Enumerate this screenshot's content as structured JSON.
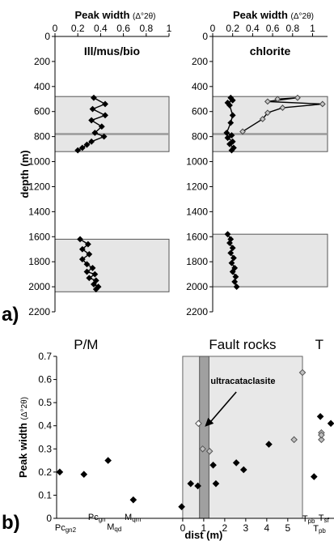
{
  "panel_labels": {
    "a": "a)",
    "b": "b)"
  },
  "chart_data": [
    {
      "type": "line",
      "panel": "a-left",
      "title": "Ill/mus/bio",
      "xlabel": "Peak width",
      "xlabel_unit": "(Δ°2θ)",
      "ylabel": "depth (m)",
      "xlim": [
        0,
        1
      ],
      "x_ticks": [
        "0",
        "0.2",
        "0.4",
        "0.6",
        "0.8",
        "1"
      ],
      "ylim": [
        0,
        2200
      ],
      "y_ticks": [
        "0",
        "200",
        "400",
        "600",
        "800",
        "1000",
        "1200",
        "1400",
        "1600",
        "1800",
        "2000",
        "2200"
      ],
      "y_inverted": true,
      "shaded_bands": [
        [
          480,
          920
        ],
        [
          1620,
          2040
        ]
      ],
      "gray_lines": [
        780
      ],
      "series": [
        {
          "x": [
            0.34,
            0.44,
            0.33,
            0.44,
            0.32,
            0.41,
            0.35,
            0.43,
            0.32,
            0.28,
            0.24,
            0.2
          ],
          "y": [
            490,
            540,
            580,
            630,
            670,
            720,
            770,
            800,
            840,
            865,
            890,
            910
          ]
        },
        {
          "x": [
            0.22,
            0.29,
            0.24,
            0.3,
            0.24,
            0.28,
            0.33,
            0.28,
            0.35,
            0.3,
            0.36,
            0.34,
            0.38,
            0.36
          ],
          "y": [
            1620,
            1660,
            1700,
            1740,
            1780,
            1820,
            1850,
            1880,
            1900,
            1930,
            1950,
            1980,
            2000,
            2020
          ]
        }
      ]
    },
    {
      "type": "line",
      "panel": "a-right",
      "title": "chlorite",
      "xlabel": "Peak width",
      "xlabel_unit": "(Δ°2θ)",
      "xlim": [
        0,
        1.15
      ],
      "x_ticks": [
        "0",
        "0.2",
        "0.4",
        "0.6",
        "0.8",
        "1"
      ],
      "ylim": [
        0,
        2200
      ],
      "y_ticks": [
        "0",
        "200",
        "400",
        "600",
        "800",
        "1000",
        "1200",
        "1400",
        "1600",
        "1800",
        "2000",
        "2200"
      ],
      "y_inverted": true,
      "shaded_bands": [
        [
          480,
          920
        ],
        [
          1580,
          2000
        ]
      ],
      "gray_lines": [
        780
      ],
      "series": [
        {
          "x": [
            0.18,
            0.2,
            0.15,
            0.17,
            0.2,
            0.18,
            0.14,
            0.19,
            0.15,
            0.2,
            0.17,
            0.21,
            0.19
          ],
          "y": [
            490,
            510,
            530,
            550,
            630,
            690,
            770,
            790,
            810,
            840,
            860,
            890,
            910
          ]
        },
        {
          "x": [
            0.65,
            0.85,
            0.55,
            1.1,
            0.7,
            0.55,
            0.5,
            0.3
          ],
          "y": [
            500,
            490,
            520,
            540,
            570,
            610,
            660,
            760
          ]
        },
        {
          "x": [
            0.15,
            0.18,
            0.17,
            0.2,
            0.18,
            0.21,
            0.19,
            0.22,
            0.2,
            0.23,
            0.22,
            0.24
          ],
          "y": [
            1580,
            1620,
            1650,
            1690,
            1730,
            1770,
            1810,
            1850,
            1880,
            1920,
            1960,
            2000
          ]
        }
      ]
    },
    {
      "type": "scatter",
      "panel": "b",
      "xlabel": "dist (m)",
      "ylabel": "Peak width",
      "ylabel_unit": "(Δ°2θ)",
      "ylim": [
        0,
        0.7
      ],
      "y_ticks": [
        "0",
        "0.1",
        "0.2",
        "0.3",
        "0.4",
        "0.5",
        "0.6",
        "0.7"
      ],
      "xlim": [
        -6,
        7.2
      ],
      "x_ticks": [
        "0",
        "1",
        "2",
        "3",
        "4",
        "5"
      ],
      "regions": [
        {
          "label": "P/M"
        },
        {
          "label": "Fault rocks",
          "x_range": [
            0,
            5.7
          ]
        },
        {
          "label": "T"
        }
      ],
      "shaded_zone": [
        0,
        5.7
      ],
      "dark_zone": [
        0.8,
        1.25
      ],
      "annotation": {
        "text": "ultracataclasite",
        "arrow_to": [
          0.9,
          0.41
        ]
      },
      "station_labels": [
        {
          "main": "Pc",
          "sub": "gn2"
        },
        {
          "main": "Pc",
          "sub": "gn"
        },
        {
          "main": "M",
          "sub": "qd"
        },
        {
          "main": "M",
          "sub": "qm"
        },
        {
          "main": "T",
          "sub": "pb"
        },
        {
          "main": "T",
          "sub": "pb"
        },
        {
          "main": "T",
          "sub": "sf"
        }
      ],
      "series": [
        {
          "marker": "black-diamond",
          "x": [
            -5.85,
            -4.7,
            -3.55,
            -2.35,
            -0.05,
            0.38,
            0.72,
            1.45,
            1.58,
            2.55,
            2.9,
            4.1,
            6.25,
            6.55,
            7.05
          ],
          "y": [
            0.2,
            0.19,
            0.25,
            0.08,
            0.05,
            0.15,
            0.14,
            0.23,
            0.15,
            0.24,
            0.21,
            0.32,
            0.18,
            0.44,
            0.41
          ]
        },
        {
          "marker": "gray-diamond",
          "x": [
            0.95,
            1.28,
            5.3,
            5.7,
            6.6,
            6.6,
            6.6
          ],
          "y": [
            0.3,
            0.29,
            0.34,
            0.63,
            0.37,
            0.34,
            0.36
          ]
        },
        {
          "marker": "open-diamond",
          "x": [
            0.75
          ],
          "y": [
            0.41
          ]
        }
      ]
    }
  ]
}
